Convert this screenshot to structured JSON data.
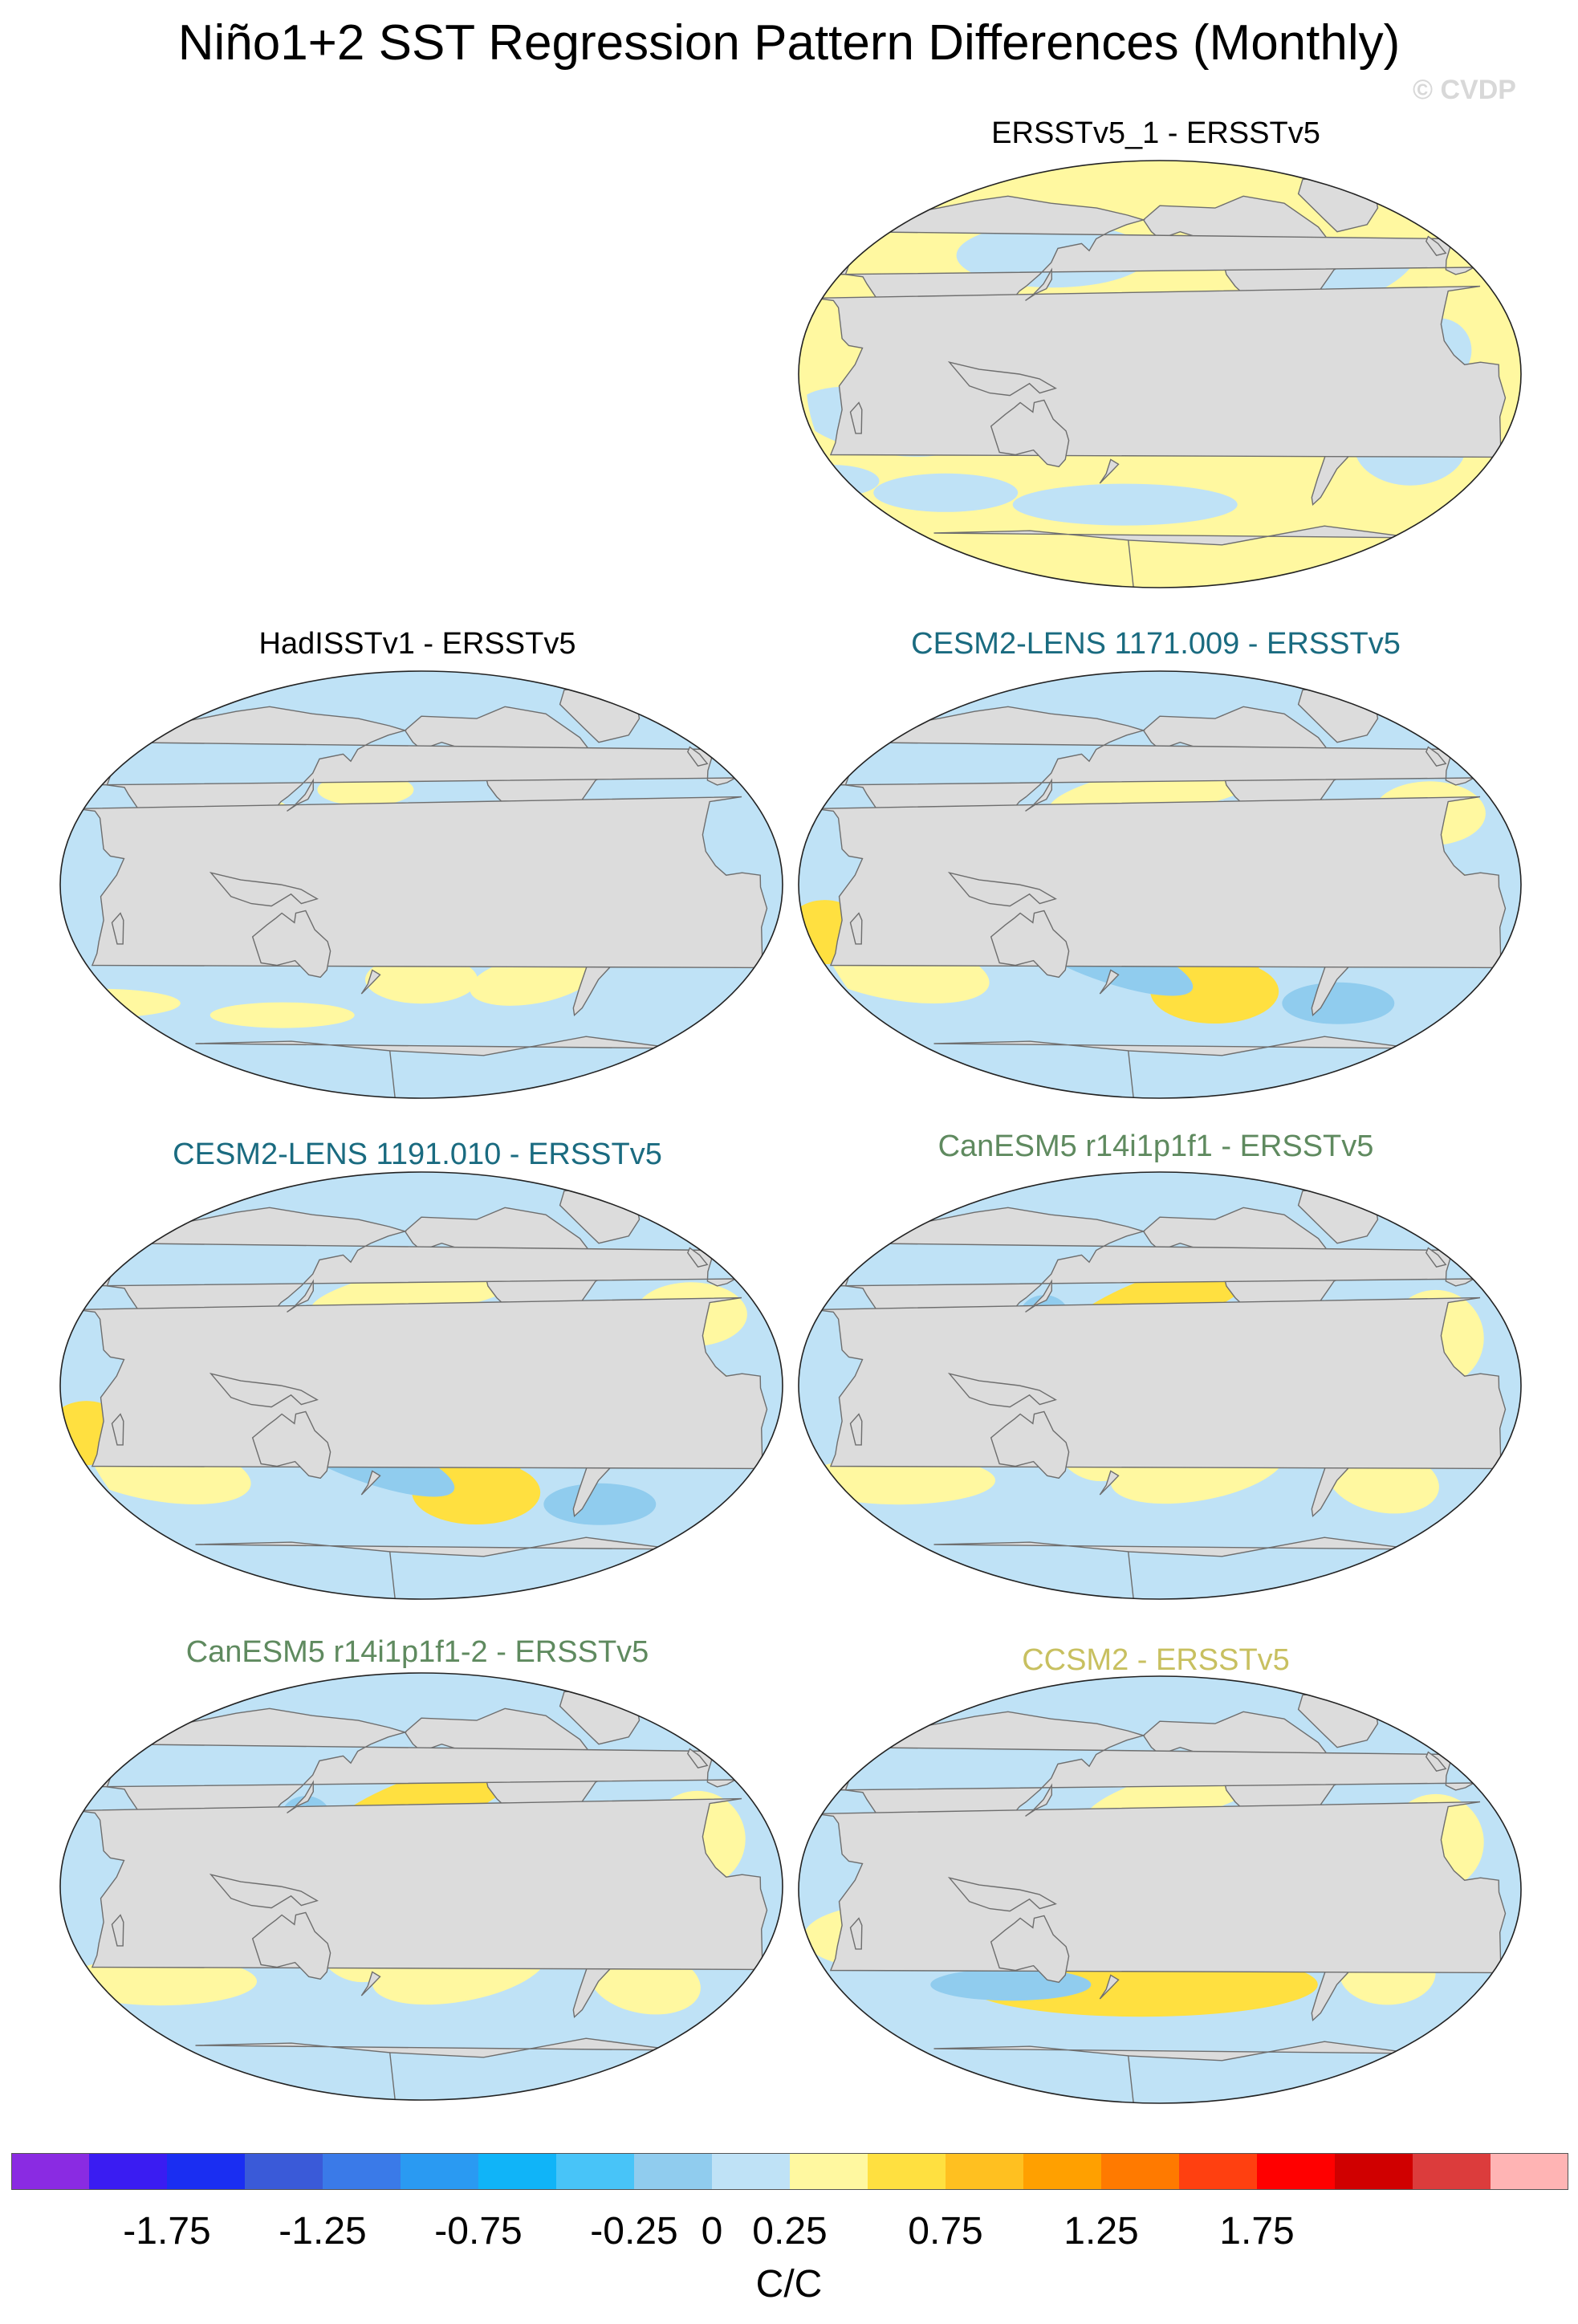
{
  "title": "Niño1+2 SST Regression Pattern Differences (Monthly)",
  "watermark": "© CVDP",
  "colors": {
    "land": "#dcdcdc",
    "coast": "#6e6e6e",
    "title_default": "#000000",
    "title_cesm": "#1a6b80",
    "title_canesm": "#5f8a5f",
    "title_ccsm": "#c8c060"
  },
  "panels": [
    {
      "id": "ersstv5-1",
      "title": "ERSSTv5_1 - ERSSTv5",
      "color": "#000000",
      "pattern": "weak-warm"
    },
    {
      "id": "hadisstv1",
      "title": "HadISSTv1 - ERSSTv5",
      "color": "#000000",
      "pattern": "weak-cool"
    },
    {
      "id": "cesm2-1171",
      "title": "CESM2-LENS 1171.009 - ERSSTv5",
      "color": "#1a6b80",
      "pattern": "enso"
    },
    {
      "id": "cesm2-1191",
      "title": "CESM2-LENS 1191.010 - ERSSTv5",
      "color": "#1a6b80",
      "pattern": "enso"
    },
    {
      "id": "canesm5-r14",
      "title": "CanESM5 r14i1p1f1 - ERSSTv5",
      "color": "#5f8a5f",
      "pattern": "enso-weak"
    },
    {
      "id": "canesm5-r14-2",
      "title": "CanESM5 r14i1p1f1-2 - ERSSTv5",
      "color": "#5f8a5f",
      "pattern": "enso-weak"
    },
    {
      "id": "ccsm2",
      "title": "CCSM2 - ERSSTv5",
      "color": "#c8c060",
      "pattern": "enso-strong"
    }
  ],
  "colorbar": {
    "units": "C/C",
    "colors": [
      "#8a2be2",
      "#3a1cf2",
      "#1a2ef2",
      "#3a5ad8",
      "#3a7ae8",
      "#2a9af2",
      "#10b4f8",
      "#48c4f8",
      "#90ccee",
      "#bfe2f6",
      "#fff8a0",
      "#ffe040",
      "#ffc020",
      "#ffa000",
      "#ff7a00",
      "#ff4010",
      "#ff0000",
      "#d00000",
      "#dc3c3c",
      "#ffb4b4"
    ],
    "tick_labels": [
      "-1.75",
      "-1.25",
      "-0.75",
      "-0.25",
      "0",
      "0.25",
      "0.75",
      "1.25",
      "1.75"
    ]
  }
}
